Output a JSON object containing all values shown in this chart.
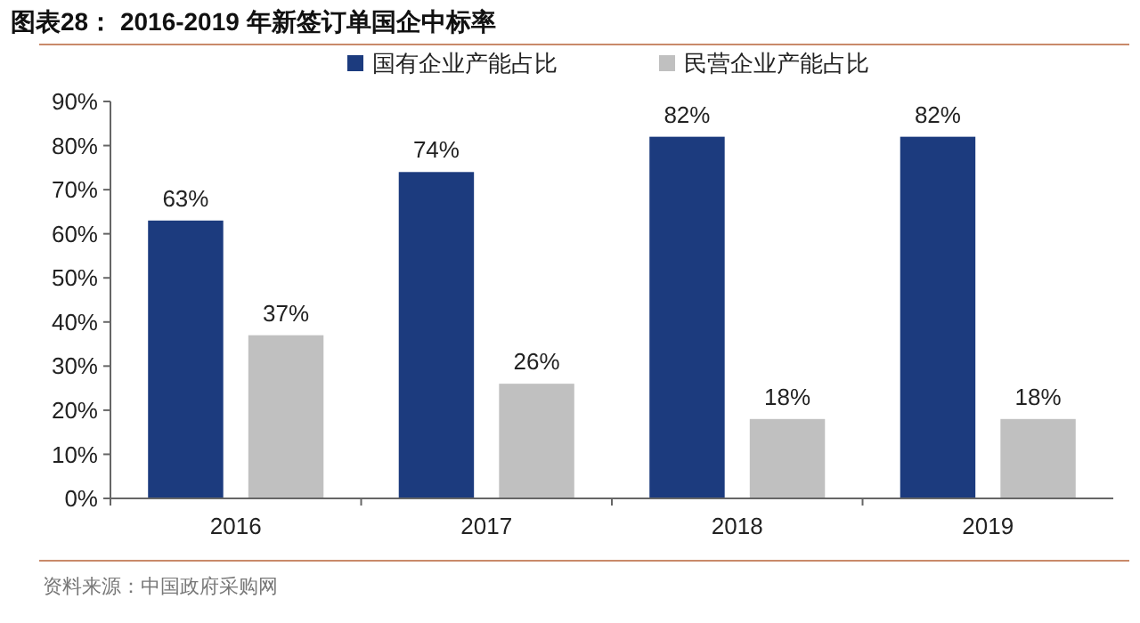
{
  "chart_data": {
    "type": "bar",
    "title": "图表28：  2016-2019 年新签订单国企中标率",
    "categories": [
      "2016",
      "2017",
      "2018",
      "2019"
    ],
    "series": [
      {
        "name": "国有企业产能占比",
        "color": "#1c3b7e",
        "values": [
          63,
          74,
          82,
          82
        ],
        "value_labels": [
          "63%",
          "74%",
          "82%",
          "82%"
        ]
      },
      {
        "name": "民营企业产能占比",
        "color": "#c0c0c0",
        "values": [
          37,
          26,
          18,
          18
        ],
        "value_labels": [
          "37%",
          "26%",
          "18%",
          "18%"
        ]
      }
    ],
    "ylim": [
      0,
      90
    ],
    "yticks": [
      {
        "value": 0,
        "label": "0%"
      },
      {
        "value": 10,
        "label": "10%"
      },
      {
        "value": 20,
        "label": "20%"
      },
      {
        "value": 30,
        "label": "30%"
      },
      {
        "value": 40,
        "label": "40%"
      },
      {
        "value": 50,
        "label": "50%"
      },
      {
        "value": 60,
        "label": "60%"
      },
      {
        "value": 70,
        "label": "70%"
      },
      {
        "value": 80,
        "label": "80%"
      },
      {
        "value": 90,
        "label": "90%"
      }
    ],
    "legend": "top",
    "annotations": [
      "资料来源：中国政府采购网"
    ]
  }
}
